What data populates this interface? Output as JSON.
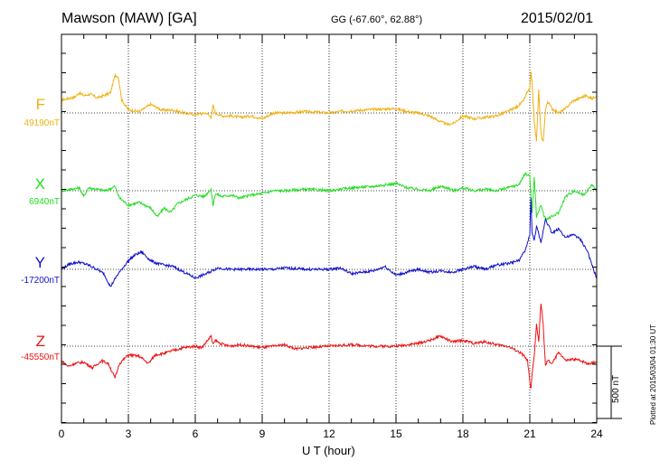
{
  "header": {
    "station": "Mawson (MAW)  [GA]",
    "coords": "GG (-67.60°,  62.88°)",
    "date": "2015/02/01"
  },
  "footer_note": "Plotted at 2015/03/04 01:30 UT",
  "scale_bar_label": "500 nT",
  "chart_data": {
    "type": "line",
    "xlabel": "U T (hour)",
    "xlim": [
      0,
      24
    ],
    "x_ticks": [
      "0",
      "3",
      "6",
      "9",
      "12",
      "15",
      "18",
      "21",
      "24"
    ],
    "y_unit": "nT",
    "grid": "dotted baselines at each component offset, vertical dotted lines every 3 hours",
    "scale_bar_nT": 500,
    "series": [
      {
        "name": "F",
        "baseline_label": "49190nT",
        "baseline_nT": 49190,
        "color": "#f0b010",
        "x": [
          0,
          0.3,
          0.6,
          0.8,
          1.0,
          1.3,
          1.6,
          1.9,
          2.2,
          2.4,
          2.55,
          2.7,
          3.0,
          3.5,
          4.0,
          4.5,
          5.0,
          5.5,
          6.0,
          6.5,
          6.7,
          6.8,
          6.9,
          7.2,
          7.6,
          8.0,
          8.5,
          9.0,
          9.5,
          10.0,
          11.0,
          12.0,
          12.5,
          13.0,
          14.0,
          15.0,
          15.5,
          16.0,
          16.5,
          17.0,
          17.3,
          17.6,
          18.0,
          18.5,
          19.0,
          19.5,
          20.0,
          20.4,
          20.7,
          20.9,
          21.0,
          21.05,
          21.1,
          21.2,
          21.3,
          21.4,
          21.5,
          21.6,
          21.7,
          21.8,
          22.0,
          22.3,
          22.6,
          22.9,
          23.2,
          23.5,
          23.8,
          24.0
        ],
        "values": [
          90,
          100,
          110,
          140,
          120,
          130,
          105,
          120,
          140,
          260,
          250,
          90,
          20,
          10,
          60,
          20,
          20,
          0,
          -10,
          0,
          -30,
          50,
          0,
          -20,
          -20,
          -30,
          -20,
          -40,
          0,
          0,
          10,
          0,
          10,
          15,
          25,
          30,
          10,
          0,
          -20,
          -60,
          -80,
          -70,
          -20,
          -40,
          -30,
          -20,
          10,
          40,
          80,
          150,
          160,
          280,
          200,
          -60,
          -200,
          160,
          -150,
          -200,
          20,
          80,
          30,
          0,
          30,
          80,
          100,
          120,
          100,
          120
        ]
      },
      {
        "name": "X",
        "baseline_label": "6940nT",
        "baseline_nT": 6940,
        "color": "#22dd22",
        "x": [
          0,
          0.4,
          0.8,
          1.0,
          1.2,
          1.6,
          2.0,
          2.4,
          2.6,
          3.0,
          3.5,
          4.0,
          4.3,
          4.6,
          4.9,
          5.2,
          5.6,
          6.0,
          6.4,
          6.7,
          6.8,
          6.9,
          7.2,
          7.6,
          8.0,
          8.5,
          9.0,
          9.5,
          10.0,
          11.0,
          12.0,
          13.0,
          14.0,
          15.0,
          15.5,
          16.0,
          16.5,
          17.0,
          17.3,
          17.6,
          18.0,
          18.5,
          19.0,
          19.5,
          20.0,
          20.5,
          20.8,
          21.0,
          21.1,
          21.2,
          21.3,
          21.5,
          21.7,
          22.0,
          22.3,
          22.6,
          23.0,
          23.4,
          23.8,
          24.0
        ],
        "values": [
          0,
          10,
          20,
          -40,
          20,
          10,
          0,
          30,
          -50,
          -100,
          -80,
          -120,
          -180,
          -120,
          -150,
          -90,
          -60,
          -30,
          -40,
          10,
          -100,
          -20,
          -40,
          -30,
          -50,
          -30,
          -20,
          0,
          0,
          10,
          0,
          20,
          30,
          50,
          20,
          10,
          0,
          30,
          20,
          0,
          20,
          0,
          10,
          0,
          20,
          40,
          120,
          100,
          -150,
          90,
          -180,
          -100,
          -200,
          -180,
          -150,
          -40,
          0,
          -30,
          40,
          0
        ]
      },
      {
        "name": "Y",
        "baseline_label": "-17200nT",
        "baseline_nT": -17200,
        "color": "#1010cc",
        "x": [
          0,
          0.4,
          0.8,
          1.2,
          1.6,
          1.9,
          2.2,
          2.5,
          3.0,
          3.3,
          3.6,
          4.0,
          4.3,
          4.6,
          5.0,
          5.5,
          6.0,
          6.5,
          7.0,
          7.5,
          8.0,
          8.5,
          9.0,
          9.5,
          10.0,
          11.0,
          12.0,
          12.5,
          13.0,
          14.0,
          14.5,
          15.0,
          15.5,
          16.0,
          16.5,
          17.0,
          17.5,
          18.0,
          18.5,
          19.0,
          19.5,
          20.0,
          20.5,
          20.8,
          21.0,
          21.05,
          21.1,
          21.2,
          21.3,
          21.5,
          21.7,
          22.0,
          22.3,
          22.6,
          23.0,
          23.3,
          23.6,
          23.8,
          24.0
        ],
        "values": [
          0,
          40,
          50,
          30,
          0,
          -30,
          -120,
          -40,
          60,
          100,
          120,
          60,
          40,
          30,
          20,
          -20,
          -60,
          -30,
          10,
          0,
          0,
          0,
          0,
          0,
          10,
          0,
          0,
          10,
          -30,
          -10,
          20,
          -40,
          -20,
          0,
          -20,
          -10,
          -20,
          0,
          20,
          0,
          30,
          40,
          60,
          130,
          240,
          500,
          250,
          200,
          300,
          180,
          350,
          250,
          280,
          220,
          240,
          200,
          120,
          20,
          -60
        ]
      },
      {
        "name": "Z",
        "baseline_label": "-45550nT",
        "baseline_nT": -45550,
        "color": "#ee1111",
        "x": [
          0,
          0.3,
          0.6,
          1.0,
          1.4,
          1.8,
          2.1,
          2.4,
          2.6,
          3.0,
          3.5,
          3.9,
          4.2,
          4.6,
          5.0,
          5.5,
          6.0,
          6.3,
          6.7,
          6.8,
          6.9,
          7.1,
          7.5,
          8.0,
          8.5,
          9.0,
          9.5,
          10.0,
          10.5,
          11.0,
          12.0,
          13.0,
          14.0,
          15.0,
          16.0,
          16.5,
          17.0,
          17.5,
          18.0,
          18.5,
          19.0,
          19.5,
          20.0,
          20.4,
          20.7,
          20.9,
          21.0,
          21.05,
          21.1,
          21.2,
          21.3,
          21.4,
          21.5,
          21.6,
          21.7,
          21.8,
          22.0,
          22.3,
          22.6,
          23.0,
          23.3,
          23.6,
          24.0
        ],
        "values": [
          -100,
          -140,
          -120,
          -110,
          -150,
          -100,
          -120,
          -220,
          -120,
          -60,
          -70,
          -120,
          -60,
          -50,
          -30,
          -10,
          0,
          -10,
          70,
          10,
          40,
          20,
          0,
          10,
          0,
          -10,
          0,
          10,
          -20,
          -10,
          0,
          10,
          0,
          0,
          20,
          40,
          70,
          30,
          40,
          20,
          30,
          10,
          0,
          -30,
          -60,
          -100,
          -250,
          -300,
          -200,
          -60,
          150,
          30,
          300,
          150,
          -140,
          -100,
          -120,
          -40,
          -100,
          -90,
          -100,
          -120,
          -110
        ]
      }
    ]
  }
}
